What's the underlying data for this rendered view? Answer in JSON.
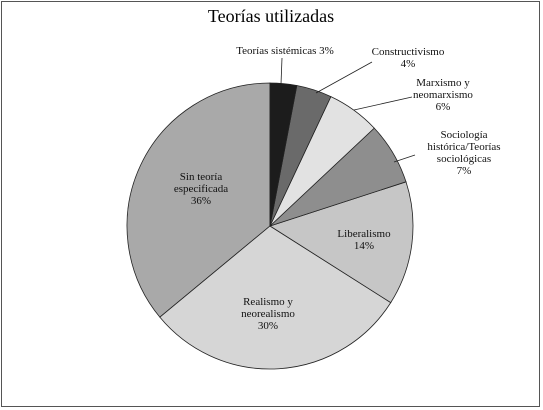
{
  "chart_data": {
    "type": "pie",
    "title": "Teorías utilizadas",
    "categories": [
      "Teorías sistémicas",
      "Constructivismo",
      "Marxismo y neomarxismo",
      "Sociología histórica/Teorías sociológicas",
      "Liberalismo",
      "Realismo y neorealismo",
      "Sin teoría especificada"
    ],
    "values": [
      3,
      4,
      6,
      7,
      14,
      30,
      36
    ],
    "value_labels": [
      "3%",
      "4%",
      "6%",
      "7%",
      "14%",
      "30%",
      "36%"
    ],
    "colors": [
      "#1c1c1c",
      "#6a6a6a",
      "#e2e2e2",
      "#8e8e8e",
      "#c6c6c6",
      "#d6d6d6",
      "#a9a9a9"
    ]
  }
}
